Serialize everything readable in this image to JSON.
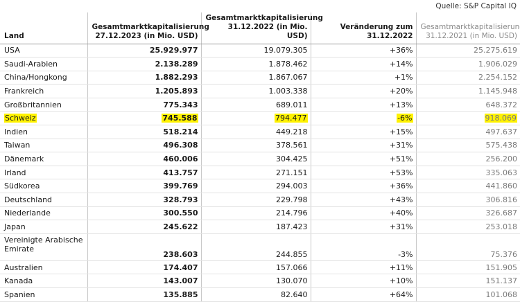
{
  "source": "Quelle: S&P Capital IQ",
  "headers": {
    "country": "Land",
    "cap_2023": "Gesamtmarktkapitalisierung 27.12.2023 (in Mio. USD)",
    "cap_2022": "Gesamtmarktkapitalisierung 31.12.2022 (in Mio. USD)",
    "change": "Veränderung zum 31.12.2022",
    "cap_2021": "Gesamtmarktkapitalisierung 31.12.2021 (in Mio. USD)"
  },
  "highlight_color": "#fff200",
  "rows": [
    {
      "country": "USA",
      "cap_2023": "25.929.977",
      "cap_2022": "19.079.305",
      "change": "+36%",
      "cap_2021": "25.275.619"
    },
    {
      "country": "Saudi-Arabien",
      "cap_2023": "2.138.289",
      "cap_2022": "1.878.462",
      "change": "+14%",
      "cap_2021": "1.906.029"
    },
    {
      "country": "China/Hongkong",
      "cap_2023": "1.882.293",
      "cap_2022": "1.867.067",
      "change": "+1%",
      "cap_2021": "2.254.152"
    },
    {
      "country": "Frankreich",
      "cap_2023": "1.205.893",
      "cap_2022": "1.003.338",
      "change": "+20%",
      "cap_2021": "1.145.948"
    },
    {
      "country": "Großbritannien",
      "cap_2023": "775.343",
      "cap_2022": "689.011",
      "change": "+13%",
      "cap_2021": "648.372"
    },
    {
      "country": "Schweiz",
      "cap_2023": "745.588",
      "cap_2022": "794.477",
      "change": "-6%",
      "cap_2021": "918.069",
      "highlighted": true
    },
    {
      "country": "Indien",
      "cap_2023": "518.214",
      "cap_2022": "449.218",
      "change": "+15%",
      "cap_2021": "497.637"
    },
    {
      "country": "Taiwan",
      "cap_2023": "496.308",
      "cap_2022": "378.561",
      "change": "+31%",
      "cap_2021": "575.438"
    },
    {
      "country": "Dänemark",
      "cap_2023": "460.006",
      "cap_2022": "304.425",
      "change": "+51%",
      "cap_2021": "256.200"
    },
    {
      "country": "Irland",
      "cap_2023": "413.757",
      "cap_2022": "271.151",
      "change": "+53%",
      "cap_2021": "335.063"
    },
    {
      "country": "Südkorea",
      "cap_2023": "399.769",
      "cap_2022": "294.003",
      "change": "+36%",
      "cap_2021": "441.860"
    },
    {
      "country": "Deutschland",
      "cap_2023": "328.793",
      "cap_2022": "229.798",
      "change": "+43%",
      "cap_2021": "306.816"
    },
    {
      "country": "Niederlande",
      "cap_2023": "300.550",
      "cap_2022": "214.796",
      "change": "+40%",
      "cap_2021": "326.687"
    },
    {
      "country": "Japan",
      "cap_2023": "245.622",
      "cap_2022": "187.423",
      "change": "+31%",
      "cap_2021": "253.018"
    },
    {
      "country": "Vereinigte Arabische Emirate",
      "cap_2023": "238.603",
      "cap_2022": "244.855",
      "change": "-3%",
      "cap_2021": "75.376",
      "tall": true
    },
    {
      "country": "Australien",
      "cap_2023": "174.407",
      "cap_2022": "157.066",
      "change": "+11%",
      "cap_2021": "151.905"
    },
    {
      "country": "Kanada",
      "cap_2023": "143.007",
      "cap_2022": "130.070",
      "change": "+10%",
      "cap_2021": "151.137"
    },
    {
      "country": "Spanien",
      "cap_2023": "135.885",
      "cap_2022": "82.640",
      "change": "+64%",
      "cap_2021": "101.068"
    }
  ]
}
